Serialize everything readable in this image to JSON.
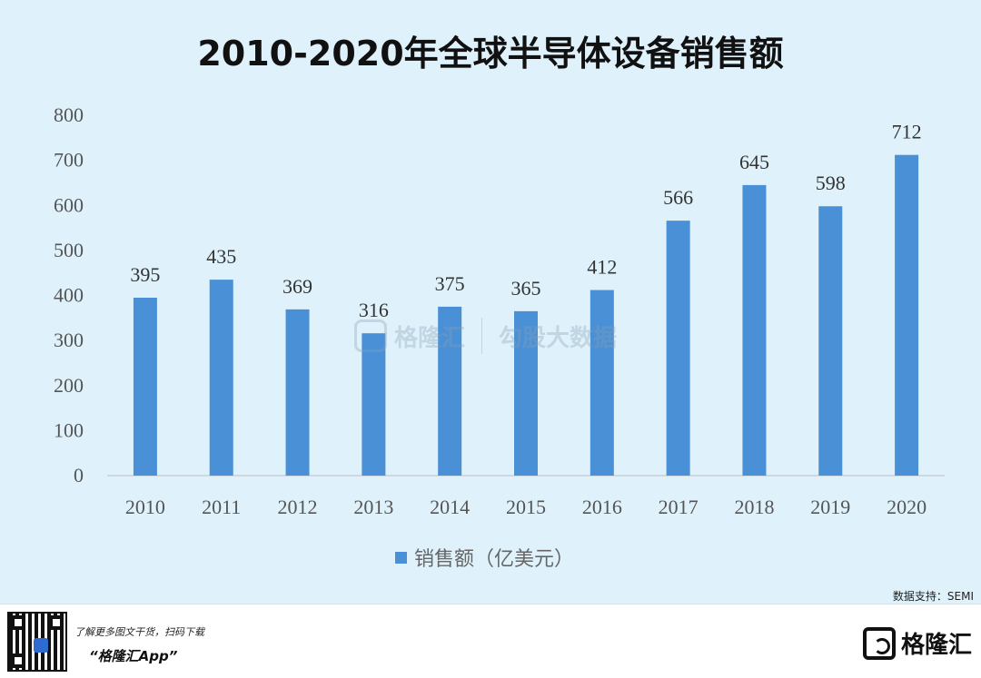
{
  "chart_data": {
    "type": "bar",
    "title": "2010-2020年全球半导体设备销售额",
    "categories": [
      "2010",
      "2011",
      "2012",
      "2013",
      "2014",
      "2015",
      "2016",
      "2017",
      "2018",
      "2019",
      "2020"
    ],
    "series": [
      {
        "name": "销售额（亿美元）",
        "values": [
          395,
          435,
          369,
          316,
          375,
          365,
          412,
          566,
          645,
          598,
          712
        ]
      }
    ],
    "data_labels": [
      "395",
      "435",
      "369",
      "316",
      "375",
      "365",
      "412",
      "566",
      "645",
      "598",
      "712"
    ],
    "ylim": [
      0,
      800
    ],
    "yticks": [
      "0",
      "100",
      "200",
      "300",
      "400",
      "500",
      "600",
      "700",
      "800"
    ],
    "grid": false,
    "legend_position": "bottom",
    "bar_color": "#4a90d6",
    "background_color": "#dff2fb"
  },
  "source_text": "数据支持：SEMI",
  "watermark": {
    "brand": "格隆汇",
    "sub": "勾股大数据"
  },
  "footer": {
    "promo_line1": "了解更多图文干货，扫码下载",
    "promo_line2": "“格隆汇App”",
    "brand_name": "格隆汇",
    "qr_icon": "qr-code-icon",
    "logo_icon": "gelonghui-logo-icon"
  }
}
